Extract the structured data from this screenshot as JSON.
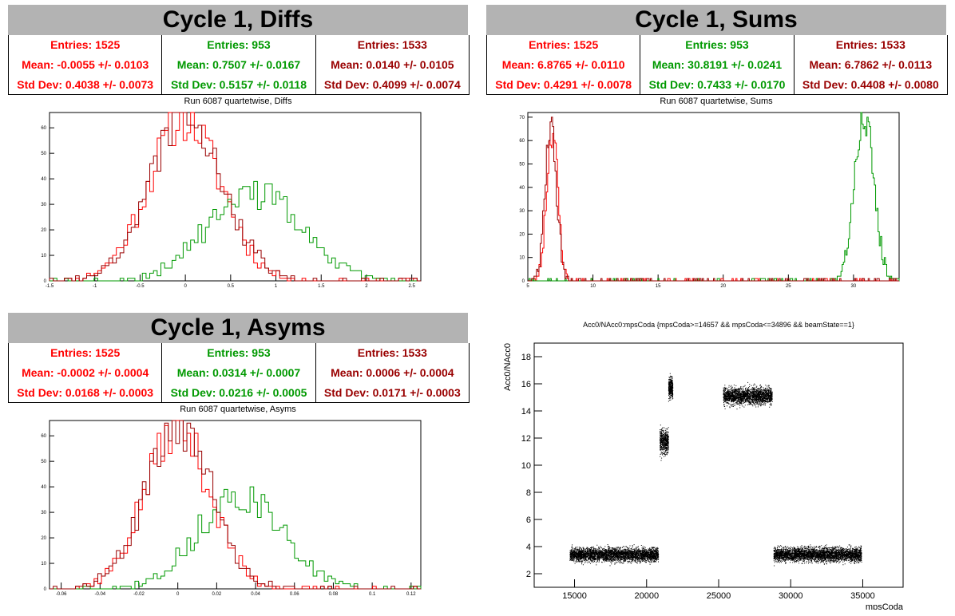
{
  "colors": {
    "red": "#ff0000",
    "green": "#009900",
    "darkred": "#990000"
  },
  "diffs": {
    "title": "Cycle 1, Diffs",
    "subtitle": "Run 6087 quartetwise, Diffs",
    "stats": [
      {
        "entries": "Entries: 1525",
        "mean": "Mean: -0.0055 +/- 0.0103",
        "std": "Std Dev: 0.4038 +/- 0.0073",
        "color": "#ff0000"
      },
      {
        "entries": "Entries: 953",
        "mean": "Mean: 0.7507 +/- 0.0167",
        "std": "Std Dev: 0.5157 +/- 0.0118",
        "color": "#009900"
      },
      {
        "entries": "Entries: 1533",
        "mean": "Mean: 0.0140 +/- 0.0105",
        "std": "Std Dev: 0.4099 +/- 0.0074",
        "color": "#990000"
      }
    ]
  },
  "sums": {
    "title": "Cycle 1, Sums",
    "subtitle": "Run 6087 quartetwise, Sums",
    "stats": [
      {
        "entries": "Entries: 1525",
        "mean": "Mean: 6.8765 +/- 0.0110",
        "std": "Std Dev: 0.4291 +/- 0.0078",
        "color": "#ff0000"
      },
      {
        "entries": "Entries: 953",
        "mean": "Mean: 30.8191 +/- 0.0241",
        "std": "Std Dev: 0.7433 +/- 0.0170",
        "color": "#009900"
      },
      {
        "entries": "Entries: 1533",
        "mean": "Mean: 6.7862 +/- 0.0113",
        "std": "Std Dev: 0.4408 +/- 0.0080",
        "color": "#990000"
      }
    ]
  },
  "asyms": {
    "title": "Cycle 1, Asyms",
    "subtitle": "Run 6087 quartetwise, Asyms",
    "stats": [
      {
        "entries": "Entries: 1525",
        "mean": "Mean: -0.0002 +/- 0.0004",
        "std": "Std Dev: 0.0168 +/- 0.0003",
        "color": "#ff0000"
      },
      {
        "entries": "Entries: 953",
        "mean": "Mean: 0.0314 +/- 0.0007",
        "std": "Std Dev: 0.0216 +/- 0.0005",
        "color": "#009900"
      },
      {
        "entries": "Entries: 1533",
        "mean": "Mean: 0.0006 +/- 0.0004",
        "std": "Std Dev: 0.0171 +/- 0.0003",
        "color": "#990000"
      }
    ]
  },
  "chart_data": [
    {
      "id": "diffs",
      "type": "histogram",
      "title": "Run 6087 quartetwise, Diffs",
      "xlim": [
        -1.5,
        2.6
      ],
      "ylim": [
        0,
        66
      ],
      "xticks": [
        -1.5,
        -1,
        -0.5,
        0,
        0.5,
        1,
        1.5,
        2,
        2.5
      ],
      "yticks": [
        0,
        10,
        20,
        30,
        40,
        50,
        60
      ],
      "bins": 100,
      "series": [
        {
          "color": "#ff0000",
          "entries": 1525,
          "mean": -0.0055,
          "std": 0.4038,
          "peak": 63
        },
        {
          "color": "#009900",
          "entries": 953,
          "mean": 0.7507,
          "std": 0.5157,
          "peak": 35
        },
        {
          "color": "#990000",
          "entries": 1533,
          "mean": 0.014,
          "std": 0.4099,
          "peak": 63
        }
      ]
    },
    {
      "id": "sums",
      "type": "histogram",
      "title": "Run 6087 quartetwise, Sums",
      "xlim": [
        5,
        33.5
      ],
      "ylim": [
        0,
        72
      ],
      "xticks": [
        5,
        10,
        15,
        20,
        25,
        30
      ],
      "yticks": [
        0,
        10,
        20,
        30,
        40,
        50,
        60,
        70
      ],
      "bins": 300,
      "series": [
        {
          "color": "#ff0000",
          "entries": 1525,
          "mean": 6.8765,
          "std": 0.4291,
          "peak": 65
        },
        {
          "color": "#009900",
          "entries": 953,
          "mean": 30.8191,
          "std": 0.7433,
          "peak": 70
        },
        {
          "color": "#990000",
          "entries": 1533,
          "mean": 6.7862,
          "std": 0.4408,
          "peak": 65
        }
      ]
    },
    {
      "id": "asyms",
      "type": "histogram",
      "title": "Run 6087 quartetwise, Asyms",
      "xlim": [
        -0.066,
        0.125
      ],
      "ylim": [
        0,
        66
      ],
      "xticks": [
        -0.06,
        -0.04,
        -0.02,
        0,
        0.02,
        0.04,
        0.06,
        0.08,
        0.1,
        0.12
      ],
      "yticks": [
        0,
        10,
        20,
        30,
        40,
        50,
        60
      ],
      "bins": 100,
      "series": [
        {
          "color": "#ff0000",
          "entries": 1525,
          "mean": -0.0002,
          "std": 0.0168,
          "peak": 63
        },
        {
          "color": "#009900",
          "entries": 953,
          "mean": 0.0314,
          "std": 0.0216,
          "peak": 37
        },
        {
          "color": "#990000",
          "entries": 1533,
          "mean": 0.0006,
          "std": 0.0171,
          "peak": 63
        }
      ]
    },
    {
      "id": "scatter",
      "type": "scatter",
      "title": "Acc0/NAcc0:mpsCoda {mpsCoda>=14657 && mpsCoda<=34896 && beamState==1}",
      "xlabel": "mpsCoda",
      "ylabel": "Acc0/NAcc0",
      "xlim": [
        12200,
        37800
      ],
      "ylim": [
        1,
        19
      ],
      "xticks": [
        15000,
        20000,
        25000,
        30000,
        35000
      ],
      "yticks": [
        2,
        4,
        6,
        8,
        10,
        12,
        14,
        16,
        18
      ],
      "clusters": [
        {
          "x": [
            14657,
            20800
          ],
          "y_center": 3.4,
          "y_spread": 0.35
        },
        {
          "x": [
            20900,
            21500
          ],
          "y_center": 11.7,
          "y_spread": 0.6
        },
        {
          "x": [
            21500,
            21800
          ],
          "y_center": 15.7,
          "y_spread": 0.5
        },
        {
          "x": [
            25300,
            28700
          ],
          "y_center": 15.1,
          "y_spread": 0.45
        },
        {
          "x": [
            28800,
            34896
          ],
          "y_center": 3.4,
          "y_spread": 0.35
        }
      ]
    }
  ]
}
